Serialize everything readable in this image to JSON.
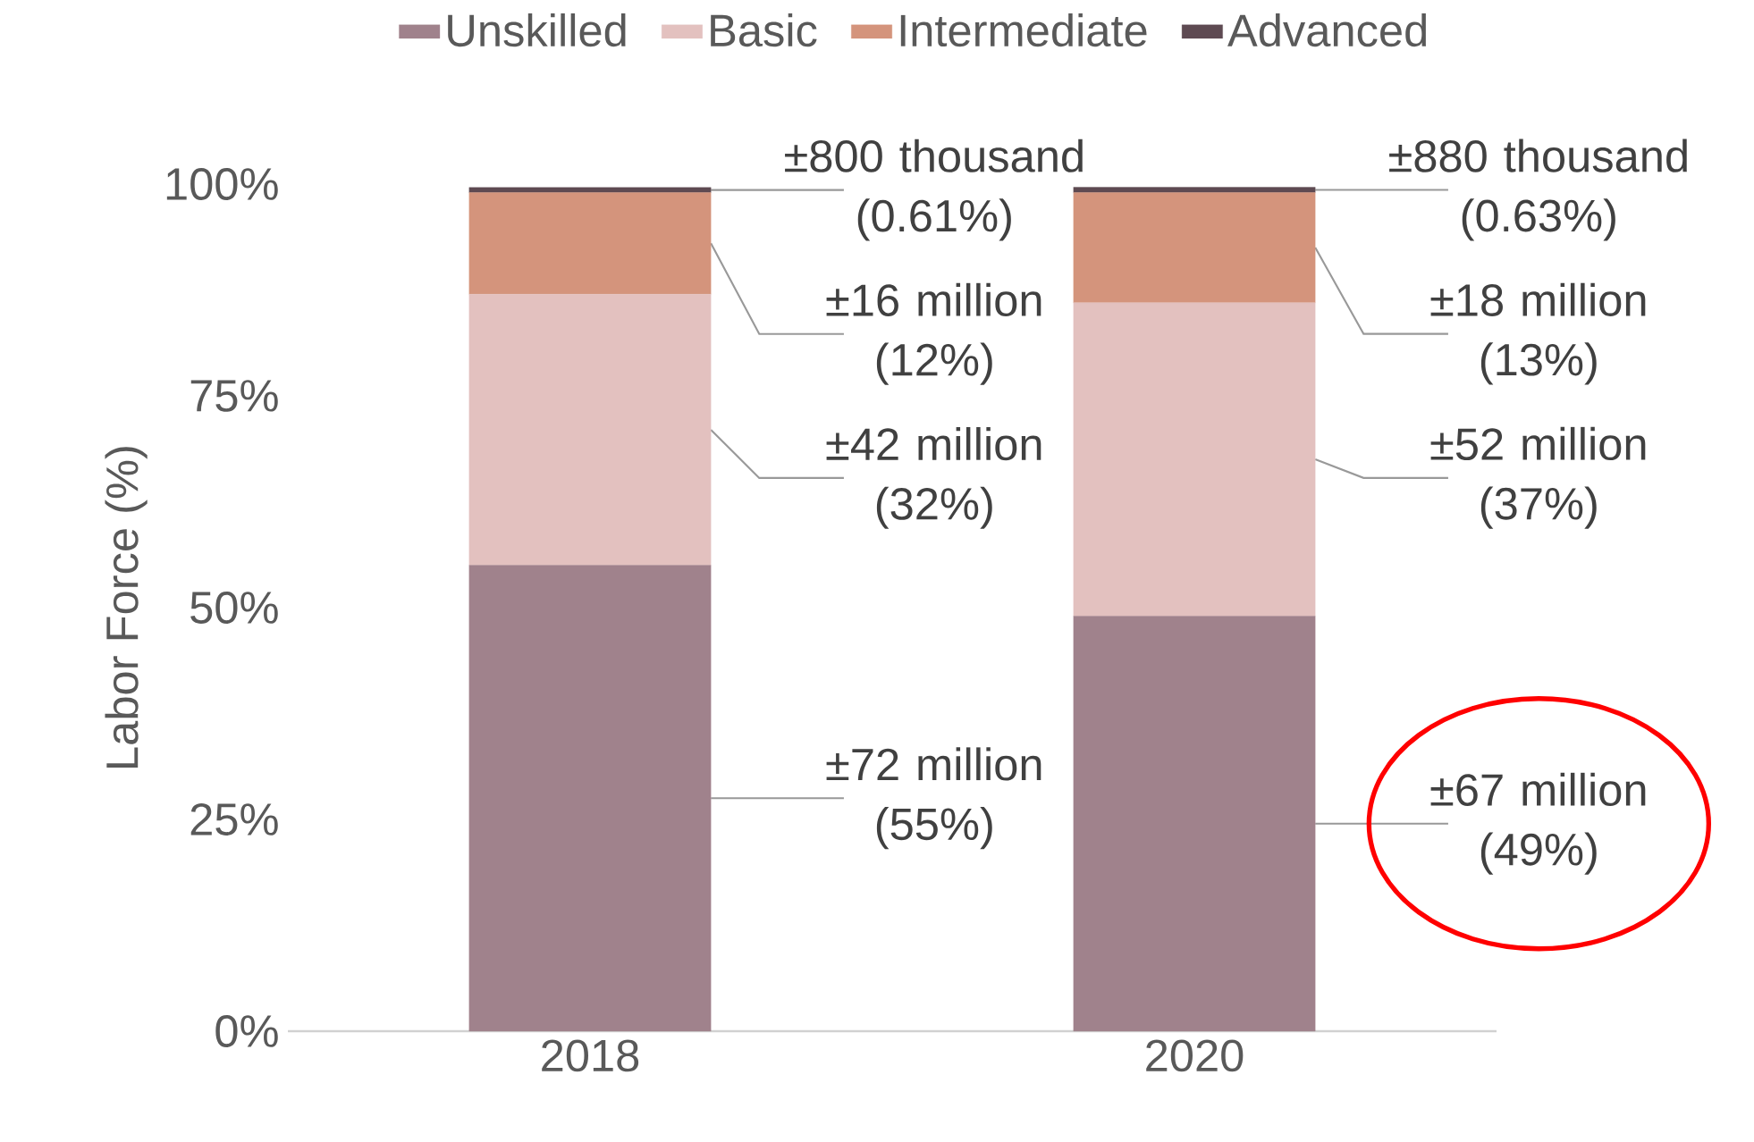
{
  "chart_data": {
    "type": "bar",
    "stacked": true,
    "ylabel": "Labor Force (%)",
    "categories": [
      "2018",
      "2020"
    ],
    "ylim": [
      0,
      100
    ],
    "yticks": [
      {
        "value": 0,
        "label": "0%"
      },
      {
        "value": 25,
        "label": "25%"
      },
      {
        "value": 50,
        "label": "50%"
      },
      {
        "value": 75,
        "label": "75%"
      },
      {
        "value": 100,
        "label": "100%"
      }
    ],
    "legend": "top",
    "grid": false,
    "series": [
      {
        "name": "Unskilled",
        "color": "#a0828c",
        "values": [
          55,
          49
        ],
        "value_labels": [
          "±72 million (55%)",
          "±67 million (49%)"
        ]
      },
      {
        "name": "Basic",
        "color": "#e3c1bf",
        "values": [
          32,
          37
        ],
        "value_labels": [
          "±42 million (32%)",
          "±52 million (37%)"
        ]
      },
      {
        "name": "Intermediate",
        "color": "#d4947c",
        "values": [
          12,
          13
        ],
        "value_labels": [
          "±16 million (12%)",
          "±18 million (13%)"
        ]
      },
      {
        "name": "Advanced",
        "color": "#5e4a52",
        "values": [
          0.61,
          0.63
        ],
        "value_labels": [
          "±800 thousand (0.61%)",
          "±880 thousand (0.63%)"
        ]
      }
    ]
  }
}
